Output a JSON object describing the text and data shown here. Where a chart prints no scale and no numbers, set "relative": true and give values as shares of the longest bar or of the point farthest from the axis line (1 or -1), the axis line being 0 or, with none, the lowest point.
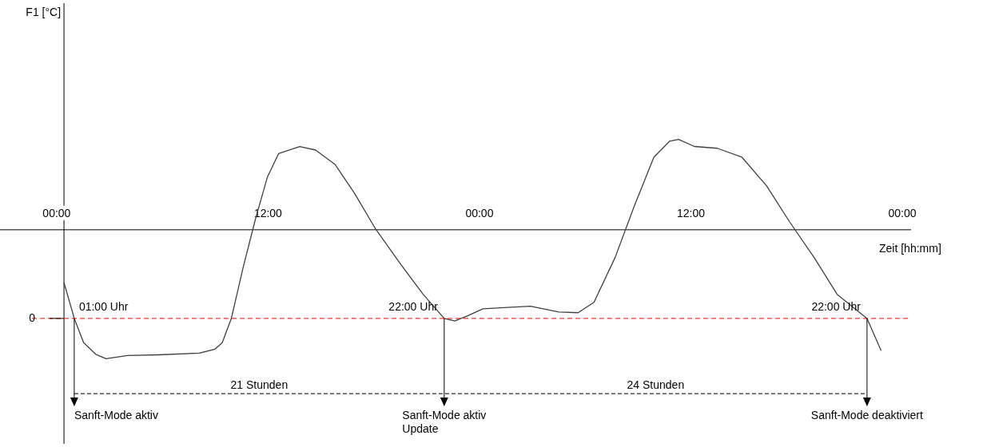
{
  "chart_data": {
    "type": "line",
    "relative": true,
    "xlabel": "Zeit [hh:mm]",
    "grid": false,
    "xlim": [
      "1999-12-31T22:36",
      "2000-01-03T00:30"
    ],
    "xticks": [
      {
        "value": "2000-01-01T00:00",
        "label": "00:00"
      },
      {
        "value": "2000-01-01T12:00",
        "label": "12:00"
      },
      {
        "value": "2000-01-02T00:00",
        "label": "00:00"
      },
      {
        "value": "2000-01-02T12:00",
        "label": "12:00"
      },
      {
        "value": "2000-01-03T00:00",
        "label": "00:00"
      }
    ],
    "x": [
      "2000-01-01T00:25",
      "2000-01-01T01:00",
      "2000-01-01T01:32",
      "2000-01-01T02:13",
      "2000-01-01T02:48",
      "2000-01-01T04:02",
      "2000-01-01T05:50",
      "2000-01-01T08:06",
      "2000-01-01T09:00",
      "2000-01-01T09:24",
      "2000-01-01T09:55",
      "2000-01-01T10:36",
      "2000-01-01T11:18",
      "2000-01-01T11:58",
      "2000-01-01T12:36",
      "2000-01-01T13:48",
      "2000-01-01T14:42",
      "2000-01-01T15:48",
      "2000-01-01T16:54",
      "2000-01-01T18:06",
      "2000-01-01T19:24",
      "2000-01-01T20:48",
      "2000-01-01T22:00",
      "2000-01-01T22:36",
      "2000-01-01T23:18",
      "2000-01-02T00:12",
      "2000-01-02T01:48",
      "2000-01-02T02:54",
      "2000-01-02T04:30",
      "2000-01-02T05:36",
      "2000-01-02T06:30",
      "2000-01-02T07:42",
      "2000-01-02T08:48",
      "2000-01-02T09:54",
      "2000-01-02T10:48",
      "2000-01-02T11:18",
      "2000-01-02T12:12",
      "2000-01-02T13:30",
      "2000-01-02T14:54",
      "2000-01-02T16:18",
      "2000-01-02T17:36",
      "2000-01-02T19:00",
      "2000-01-02T20:18",
      "2000-01-02T22:00",
      "2000-01-02T22:48"
    ],
    "series": [
      {
        "color": "#404040",
        "values": [
          0.2,
          0,
          -0.135,
          -0.2,
          -0.225,
          -0.207,
          -0.203,
          -0.194,
          -0.171,
          -0.135,
          0,
          0.29,
          0.56,
          0.79,
          0.92,
          0.96,
          0.94,
          0.86,
          0.7,
          0.5,
          0.32,
          0.135,
          0,
          -0.014,
          0.014,
          0.054,
          0.063,
          0.068,
          0.036,
          0.032,
          0.09,
          0.34,
          0.63,
          0.9,
          0.99,
          1,
          0.96,
          0.95,
          0.9,
          0.74,
          0.54,
          0.34,
          0.135,
          0,
          -0.18
        ]
      }
    ],
    "ref_lines": [
      {
        "axis": "y",
        "value": 0,
        "label": "0",
        "color": "#ff0000",
        "line_style": "dashed"
      },
      {
        "axis": "x",
        "value": "2000-01-01T00:25",
        "color": "#000000",
        "line_style": "solid"
      }
    ],
    "annotations": [
      {
        "text": "01:00 Uhr",
        "x": "2000-01-01T01:00",
        "y": 0
      },
      {
        "text": "22:00 Uhr",
        "x": "2000-01-01T22:00",
        "y": 0
      },
      {
        "text": "22:00 Uhr",
        "x": "2000-01-02T22:00",
        "y": 0
      },
      "21 Stunden",
      "24 Stunden",
      "Sanft-Mode aktiv",
      "Sanft-Mode aktiv\nUpdate",
      "Sanft-Mode deaktiviert",
      "F1 [°C]"
    ]
  }
}
